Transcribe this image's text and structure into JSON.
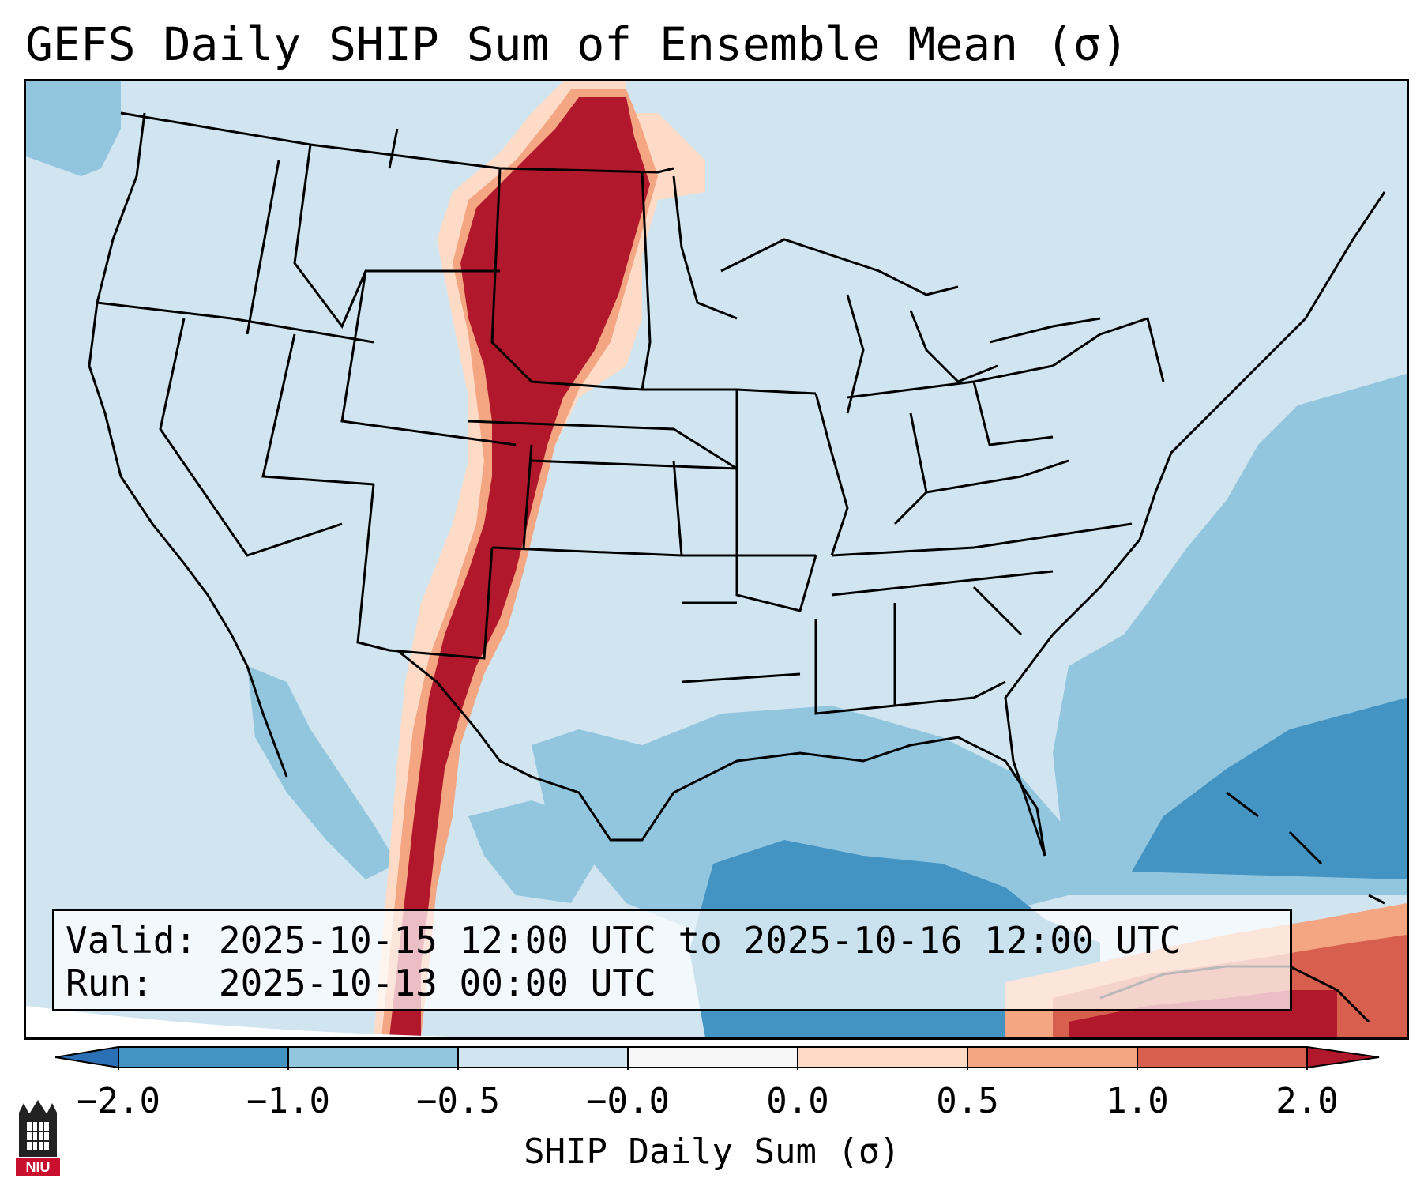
{
  "title": "GEFS Daily SHIP Sum of Ensemble Mean (σ)",
  "info": {
    "valid_label": "Valid:",
    "valid_value": "2025-10-15 12:00 UTC to 2025-10-16 12:00 UTC",
    "run_label": "Run:",
    "run_value": "2025-10-13 00:00 UTC"
  },
  "colorbar": {
    "label": "SHIP Daily Sum (σ)",
    "ticks": [
      "−2.0",
      "−1.0",
      "−0.5",
      "−0.0",
      "0.0",
      "0.5",
      "1.0",
      "2.0"
    ],
    "colors": {
      "lt_neg2": "#2b6fb5",
      "neg2_neg1": "#4393c3",
      "neg1_neg05": "#92c5de",
      "neg05_0": "#d1e5f0",
      "zero_gap": "#f7f7f7",
      "0_05": "#fddbc7",
      "05_1": "#f4a582",
      "1_2": "#d6604d",
      "gt_2": "#b2182b"
    }
  },
  "logo": {
    "text": "NIU"
  },
  "map_colors": {
    "background": "#d1e5f0",
    "border": "#000000"
  }
}
